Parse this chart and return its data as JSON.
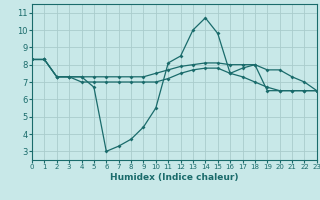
{
  "xlabel": "Humidex (Indice chaleur)",
  "xlim": [
    0,
    23
  ],
  "ylim": [
    2.5,
    11.5
  ],
  "xticks": [
    0,
    1,
    2,
    3,
    4,
    5,
    6,
    7,
    8,
    9,
    10,
    11,
    12,
    13,
    14,
    15,
    16,
    17,
    18,
    19,
    20,
    21,
    22,
    23
  ],
  "yticks": [
    3,
    4,
    5,
    6,
    7,
    8,
    9,
    10,
    11
  ],
  "bg_color": "#c8e8e8",
  "grid_color": "#aacccc",
  "line_color": "#1a6b6b",
  "curves": [
    {
      "x": [
        0,
        1,
        2,
        3,
        4,
        5,
        6,
        7,
        8,
        9,
        10,
        11,
        12,
        13,
        14,
        15,
        16,
        17,
        18,
        19,
        20,
        21,
        22,
        23
      ],
      "y": [
        8.3,
        8.3,
        7.3,
        7.3,
        7.3,
        6.7,
        3.0,
        3.3,
        3.7,
        4.4,
        5.5,
        8.1,
        8.5,
        10.0,
        10.7,
        9.8,
        7.5,
        7.8,
        8.0,
        6.5,
        6.5,
        6.5,
        6.5,
        6.5
      ]
    },
    {
      "x": [
        0,
        1,
        2,
        3,
        4,
        5,
        6,
        7,
        8,
        9,
        10,
        11,
        12,
        13,
        14,
        15,
        16,
        17,
        18,
        19,
        20,
        21,
        22,
        23
      ],
      "y": [
        8.3,
        8.3,
        7.3,
        7.3,
        7.3,
        7.3,
        7.3,
        7.3,
        7.3,
        7.3,
        7.5,
        7.7,
        7.9,
        8.0,
        8.1,
        8.1,
        8.0,
        8.0,
        8.0,
        7.7,
        7.7,
        7.3,
        7.0,
        6.5
      ]
    },
    {
      "x": [
        0,
        1,
        2,
        3,
        4,
        5,
        6,
        7,
        8,
        9,
        10,
        11,
        12,
        13,
        14,
        15,
        16,
        17,
        18,
        19,
        20,
        21,
        22,
        23
      ],
      "y": [
        8.3,
        8.3,
        7.3,
        7.3,
        7.0,
        7.0,
        7.0,
        7.0,
        7.0,
        7.0,
        7.0,
        7.2,
        7.5,
        7.7,
        7.8,
        7.8,
        7.5,
        7.3,
        7.0,
        6.7,
        6.5,
        6.5,
        6.5,
        6.5
      ]
    }
  ]
}
